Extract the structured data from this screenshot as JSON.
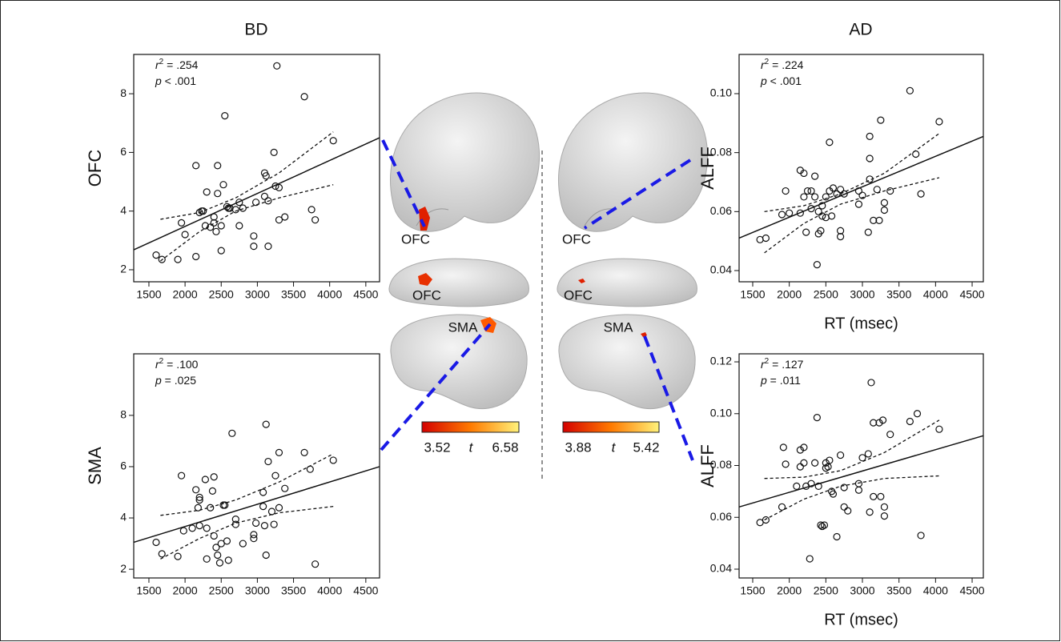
{
  "column_titles": [
    "BD",
    "AD"
  ],
  "brain_labels": {
    "left": [
      "OFC",
      "OFC",
      "SMA"
    ],
    "right": [
      "OFC",
      "OFC",
      "SMA"
    ]
  },
  "colorbars": [
    {
      "min": 3.52,
      "label": "t",
      "max": 6.58
    },
    {
      "min": 3.88,
      "label": "t",
      "max": 5.42
    }
  ],
  "chart_data": [
    {
      "type": "scatter",
      "ylabel": "OFC",
      "stats": {
        "r": "r",
        "r_sup": "2",
        "r_text": " = .254",
        "p": "p",
        "p_text": " < .001"
      },
      "xlim": [
        1290,
        4690
      ],
      "ylim": [
        1.59,
        9.34
      ],
      "xticks": [
        1500,
        2000,
        2500,
        3000,
        3500,
        4000,
        4500
      ],
      "yticks": [
        2,
        4,
        6,
        8
      ],
      "points": {
        "x": [
          1600,
          1680,
          1900,
          1950,
          2000,
          2150,
          2150,
          2200,
          2230,
          2250,
          2300,
          2280,
          2350,
          2400,
          2400,
          2430,
          2450,
          2450,
          2500,
          2500,
          2530,
          2550,
          2580,
          2600,
          2620,
          2700,
          2750,
          2750,
          2800,
          2950,
          2950,
          2980,
          3100,
          3100,
          3120,
          3150,
          3150,
          3230,
          3250,
          3270,
          3300,
          3300,
          3380,
          3650,
          3750,
          3800,
          4050
        ],
        "y": [
          2.5,
          2.35,
          2.35,
          3.6,
          3.2,
          5.55,
          2.45,
          3.95,
          4.0,
          4.0,
          4.65,
          3.5,
          3.45,
          3.6,
          3.8,
          3.3,
          5.55,
          4.6,
          3.5,
          2.65,
          4.9,
          7.25,
          4.15,
          4.1,
          4.1,
          4.05,
          4.3,
          3.5,
          4.1,
          2.8,
          3.15,
          4.3,
          5.3,
          4.5,
          5.2,
          4.35,
          2.8,
          6.0,
          4.85,
          8.95,
          4.8,
          3.7,
          3.8,
          7.9,
          4.05,
          3.7,
          6.4
        ]
      },
      "fit": {
        "x": [
          1290,
          4690
        ],
        "y": [
          2.68,
          6.5
        ]
      },
      "ci_upper": {
        "x": [
          1660,
          2200,
          2700,
          3300,
          4050
        ],
        "y": [
          3.72,
          3.95,
          4.45,
          5.3,
          6.7
        ]
      },
      "ci_lower": {
        "x": [
          1660,
          2200,
          2700,
          3300,
          4050
        ],
        "y": [
          2.3,
          3.3,
          4.0,
          4.45,
          4.9
        ]
      }
    },
    {
      "type": "scatter",
      "ylabel": "SMA",
      "stats": {
        "r": "r",
        "r_sup": "2",
        "r_text": " = .100",
        "p": "p",
        "p_text": " = .025"
      },
      "xlim": [
        1290,
        4690
      ],
      "ylim": [
        1.66,
        10.4
      ],
      "xticks": [
        1500,
        2000,
        2500,
        3000,
        3500,
        4000,
        4500
      ],
      "yticks": [
        2,
        4,
        6,
        8
      ],
      "points": {
        "x": [
          1600,
          1680,
          1900,
          1950,
          1980,
          2100,
          2150,
          2180,
          2200,
          2200,
          2200,
          2280,
          2300,
          2300,
          2350,
          2380,
          2400,
          2400,
          2430,
          2450,
          2480,
          2500,
          2530,
          2550,
          2580,
          2600,
          2650,
          2700,
          2700,
          2800,
          2950,
          2950,
          2980,
          3080,
          3080,
          3100,
          3120,
          3120,
          3150,
          3200,
          3230,
          3250,
          3300,
          3300,
          3380,
          3650,
          3730,
          3800,
          4050
        ],
        "y": [
          3.05,
          2.6,
          2.5,
          5.65,
          3.5,
          3.6,
          5.1,
          4.4,
          4.8,
          4.7,
          3.7,
          5.5,
          2.4,
          3.6,
          4.4,
          5.05,
          5.6,
          3.3,
          2.85,
          2.55,
          2.25,
          3.0,
          4.5,
          4.5,
          3.1,
          2.35,
          7.3,
          3.75,
          3.95,
          3.0,
          3.35,
          3.2,
          3.8,
          4.45,
          5.0,
          3.7,
          7.65,
          2.55,
          6.2,
          4.25,
          3.75,
          5.65,
          6.55,
          4.4,
          5.15,
          6.55,
          5.9,
          2.2,
          6.25
        ]
      },
      "fit": {
        "x": [
          1290,
          4690
        ],
        "y": [
          3.05,
          6.0
        ]
      },
      "ci_upper": {
        "x": [
          1660,
          2200,
          2700,
          3300,
          4050
        ],
        "y": [
          4.1,
          4.3,
          4.7,
          5.4,
          6.5
        ]
      },
      "ci_lower": {
        "x": [
          1660,
          2200,
          2700,
          3300,
          4050
        ],
        "y": [
          2.4,
          3.2,
          3.8,
          4.2,
          4.45
        ]
      }
    },
    {
      "type": "scatter",
      "ylabel": "ALFF",
      "xlabel": "RT (msec)",
      "stats": {
        "r": "r",
        "r_sup": "2",
        "r_text": " = .224",
        "p": "p",
        "p_text": " < .001"
      },
      "xlim": [
        1314,
        4653
      ],
      "ylim": [
        0.0362,
        0.1133
      ],
      "xticks": [
        1500,
        2000,
        2500,
        3000,
        3500,
        4000,
        4500
      ],
      "yticks": [
        0.04,
        0.06,
        0.08,
        {
          "value": 0.1,
          "label": "0.10"
        }
      ],
      "points": {
        "x": [
          1600,
          1680,
          1900,
          1950,
          2000,
          2150,
          2150,
          2200,
          2200,
          2230,
          2250,
          2300,
          2300,
          2350,
          2350,
          2380,
          2400,
          2400,
          2430,
          2450,
          2450,
          2500,
          2500,
          2550,
          2550,
          2580,
          2600,
          2650,
          2700,
          2700,
          2700,
          2750,
          2950,
          2950,
          3000,
          3080,
          3100,
          3100,
          3100,
          3150,
          3200,
          3230,
          3250,
          3300,
          3300,
          3380,
          3650,
          3730,
          3800,
          4050
        ],
        "y": [
          0.0505,
          0.051,
          0.059,
          0.067,
          0.0595,
          0.074,
          0.0595,
          0.073,
          0.065,
          0.053,
          0.067,
          0.061,
          0.067,
          0.072,
          0.065,
          0.042,
          0.0525,
          0.06,
          0.0535,
          0.062,
          0.0585,
          0.065,
          0.058,
          0.0835,
          0.067,
          0.0585,
          0.068,
          0.066,
          0.0675,
          0.0535,
          0.0515,
          0.066,
          0.067,
          0.0625,
          0.0655,
          0.053,
          0.071,
          0.078,
          0.0855,
          0.057,
          0.0675,
          0.057,
          0.091,
          0.063,
          0.0605,
          0.067,
          0.101,
          0.0795,
          0.066,
          0.0905
        ]
      },
      "fit": {
        "x": [
          1314,
          4653
        ],
        "y": [
          0.051,
          0.0855
        ]
      },
      "ci_upper": {
        "x": [
          1660,
          2200,
          2700,
          3300,
          4050
        ],
        "y": [
          0.06,
          0.062,
          0.066,
          0.073,
          0.0865
        ]
      },
      "ci_lower": {
        "x": [
          1660,
          2200,
          2700,
          3300,
          4050
        ],
        "y": [
          0.046,
          0.056,
          0.0625,
          0.067,
          0.0715
        ]
      }
    },
    {
      "type": "scatter",
      "ylabel": "ALFF",
      "xlabel": "RT (msec)",
      "stats": {
        "r": "r",
        "r_sup": "2",
        "r_text": " = .127",
        "p": "p",
        "p_text": " = .011"
      },
      "xlim": [
        1314,
        4653
      ],
      "ylim": [
        0.0366,
        0.1231
      ],
      "xticks": [
        1500,
        2000,
        2500,
        3000,
        3500,
        4000,
        4500
      ],
      "yticks": [
        0.04,
        0.06,
        0.08,
        {
          "value": 0.1,
          "label": "0.10"
        },
        0.12
      ],
      "points": {
        "x": [
          1600,
          1680,
          1900,
          1920,
          1950,
          2100,
          2150,
          2150,
          2200,
          2200,
          2230,
          2280,
          2300,
          2350,
          2380,
          2400,
          2430,
          2450,
          2480,
          2500,
          2500,
          2530,
          2550,
          2580,
          2600,
          2650,
          2700,
          2750,
          2750,
          2800,
          2950,
          2950,
          3000,
          3080,
          3100,
          3120,
          3150,
          3150,
          3230,
          3250,
          3280,
          3300,
          3300,
          3380,
          3650,
          3750,
          3800,
          4050
        ],
        "y": [
          0.058,
          0.059,
          0.064,
          0.087,
          0.0805,
          0.072,
          0.086,
          0.0795,
          0.087,
          0.081,
          0.072,
          0.044,
          0.073,
          0.081,
          0.0985,
          0.072,
          0.057,
          0.0565,
          0.057,
          0.081,
          0.079,
          0.0795,
          0.082,
          0.07,
          0.069,
          0.0525,
          0.084,
          0.064,
          0.0715,
          0.0625,
          0.073,
          0.0705,
          0.083,
          0.0845,
          0.062,
          0.112,
          0.068,
          0.0965,
          0.0965,
          0.068,
          0.0975,
          0.064,
          0.0605,
          0.092,
          0.097,
          0.1,
          0.053,
          0.094
        ]
      },
      "fit": {
        "x": [
          1314,
          4653
        ],
        "y": [
          0.064,
          0.0915
        ]
      },
      "ci_upper": {
        "x": [
          1660,
          2200,
          2700,
          3300,
          4050
        ],
        "y": [
          0.075,
          0.0755,
          0.078,
          0.085,
          0.0975
        ]
      },
      "ci_lower": {
        "x": [
          1660,
          2200,
          2700,
          3300,
          4050
        ],
        "y": [
          0.059,
          0.067,
          0.072,
          0.075,
          0.076
        ]
      }
    }
  ]
}
